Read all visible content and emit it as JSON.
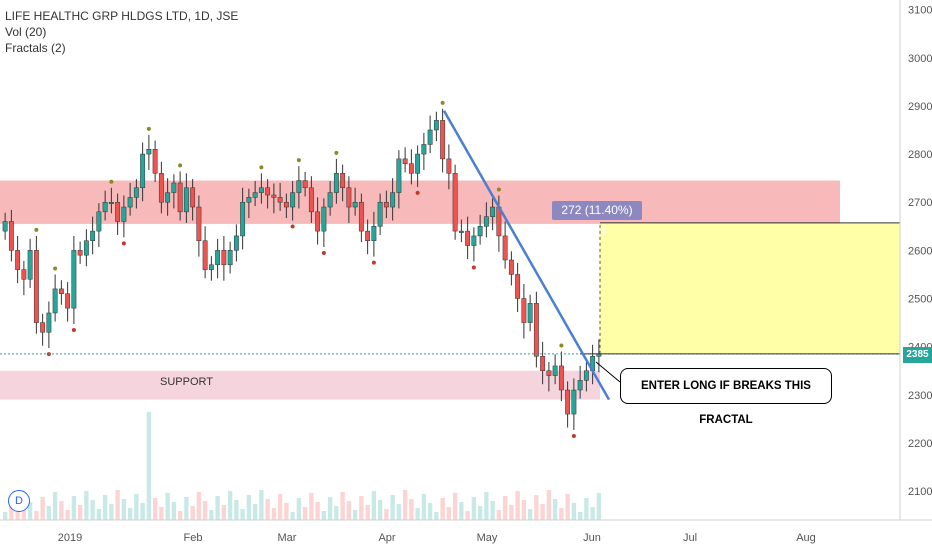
{
  "legend": {
    "title": "LIFE HEALTHC GRP HLDGS LTD, 1D, JSE",
    "vol": "Vol (20)",
    "fractals": "Fractals (2)"
  },
  "annotations": {
    "measure": "272 (11.40%) 272",
    "callout": "ENTER LONG IF BREAKS THIS FRACTAL",
    "support": "SUPPORT",
    "last_price": "2385",
    "dividend_marker": "D"
  },
  "colors": {
    "up": "#26a69a",
    "down": "#ef5350",
    "resistance_zone": "#f08080",
    "support_zone": "#f3c9d4",
    "target_box": "#ffff99",
    "trendline": "#4a7fd4",
    "price_line": "#26a69a"
  },
  "chart_data": {
    "type": "candlestick",
    "y_ticks": [
      2100,
      2200,
      2300,
      2400,
      2500,
      2600,
      2700,
      2800,
      2900,
      3000,
      3100
    ],
    "ylim": [
      2040,
      3120
    ],
    "x_ticks": [
      "2019",
      "Feb",
      "Mar",
      "Apr",
      "May",
      "Jun",
      "Jul",
      "Aug"
    ],
    "resistance_zone": [
      2655,
      2745
    ],
    "support_zone": [
      2290,
      2350
    ],
    "target_box": {
      "from": 2385,
      "to": 2657,
      "change": 272,
      "percent": 11.4
    },
    "last_price": 2385,
    "trendline": {
      "start": {
        "date": "2019-04-17",
        "price": 2890
      },
      "end": {
        "date": "2019-06-04",
        "price": 2290
      }
    },
    "closes": [
      2660,
      2600,
      2560,
      2540,
      2600,
      2450,
      2430,
      2470,
      2520,
      2510,
      2480,
      2600,
      2590,
      2620,
      2640,
      2680,
      2700,
      2700,
      2660,
      2690,
      2710,
      2730,
      2800,
      2810,
      2760,
      2700,
      2720,
      2740,
      2680,
      2730,
      2690,
      2620,
      2560,
      2570,
      2600,
      2570,
      2600,
      2630,
      2700,
      2710,
      2720,
      2730,
      2715,
      2710,
      2700,
      2690,
      2720,
      2745,
      2730,
      2680,
      2640,
      2690,
      2720,
      2760,
      2730,
      2690,
      2700,
      2640,
      2620,
      2650,
      2700,
      2690,
      2720,
      2790,
      2780,
      2760,
      2800,
      2820,
      2850,
      2870,
      2790,
      2760,
      2640,
      2640,
      2610,
      2630,
      2650,
      2670,
      2690,
      2630,
      2580,
      2550,
      2500,
      2450,
      2490,
      2380,
      2350,
      2340,
      2360,
      2310,
      2260,
      2310,
      2330,
      2350,
      2380,
      2385
    ],
    "volume_note": "volume bars along the bottom, one spike in early February"
  }
}
